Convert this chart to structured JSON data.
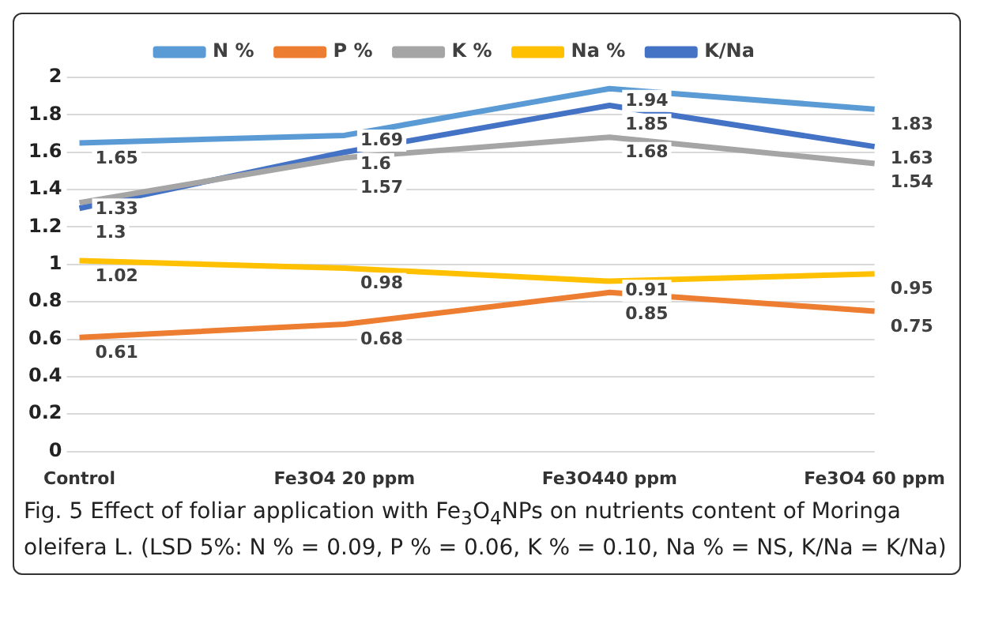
{
  "chart_data": {
    "type": "line",
    "categories": [
      "Control",
      "Fe3O4 20 ppm",
      "Fe3O440 ppm",
      "Fe3O4 60 ppm"
    ],
    "series": [
      {
        "name": "N %",
        "color": "#5b9bd5",
        "values": [
          1.65,
          1.69,
          1.94,
          1.83
        ]
      },
      {
        "name": "P %",
        "color": "#ed7d31",
        "values": [
          0.61,
          0.68,
          0.85,
          0.75
        ]
      },
      {
        "name": "K %",
        "color": "#a5a5a5",
        "values": [
          1.33,
          1.57,
          1.68,
          1.54
        ]
      },
      {
        "name": "Na %",
        "color": "#ffc000",
        "values": [
          1.02,
          0.98,
          0.91,
          0.95
        ]
      },
      {
        "name": "K/Na",
        "color": "#4472c4",
        "values": [
          1.3,
          1.6,
          1.85,
          1.63
        ]
      }
    ],
    "ylim": [
      0,
      2
    ],
    "yticks": [
      0,
      0.2,
      0.4,
      0.6,
      0.8,
      1,
      1.2,
      1.4,
      1.6,
      1.8,
      2
    ],
    "grid": "y",
    "legend": "top",
    "marker": "none",
    "line_style": "solid",
    "data_labels": true,
    "annotations": [
      "Fig. 5  Effect of foliar application with Fe$_{3}$O$_{4}$NPs on nutrients content of Moringa oleifera L. (LSD 5%: N % = 0.09, P % = 0.06, K % = 0.10, Na % = NS, K/Na = K/Na)"
    ]
  }
}
